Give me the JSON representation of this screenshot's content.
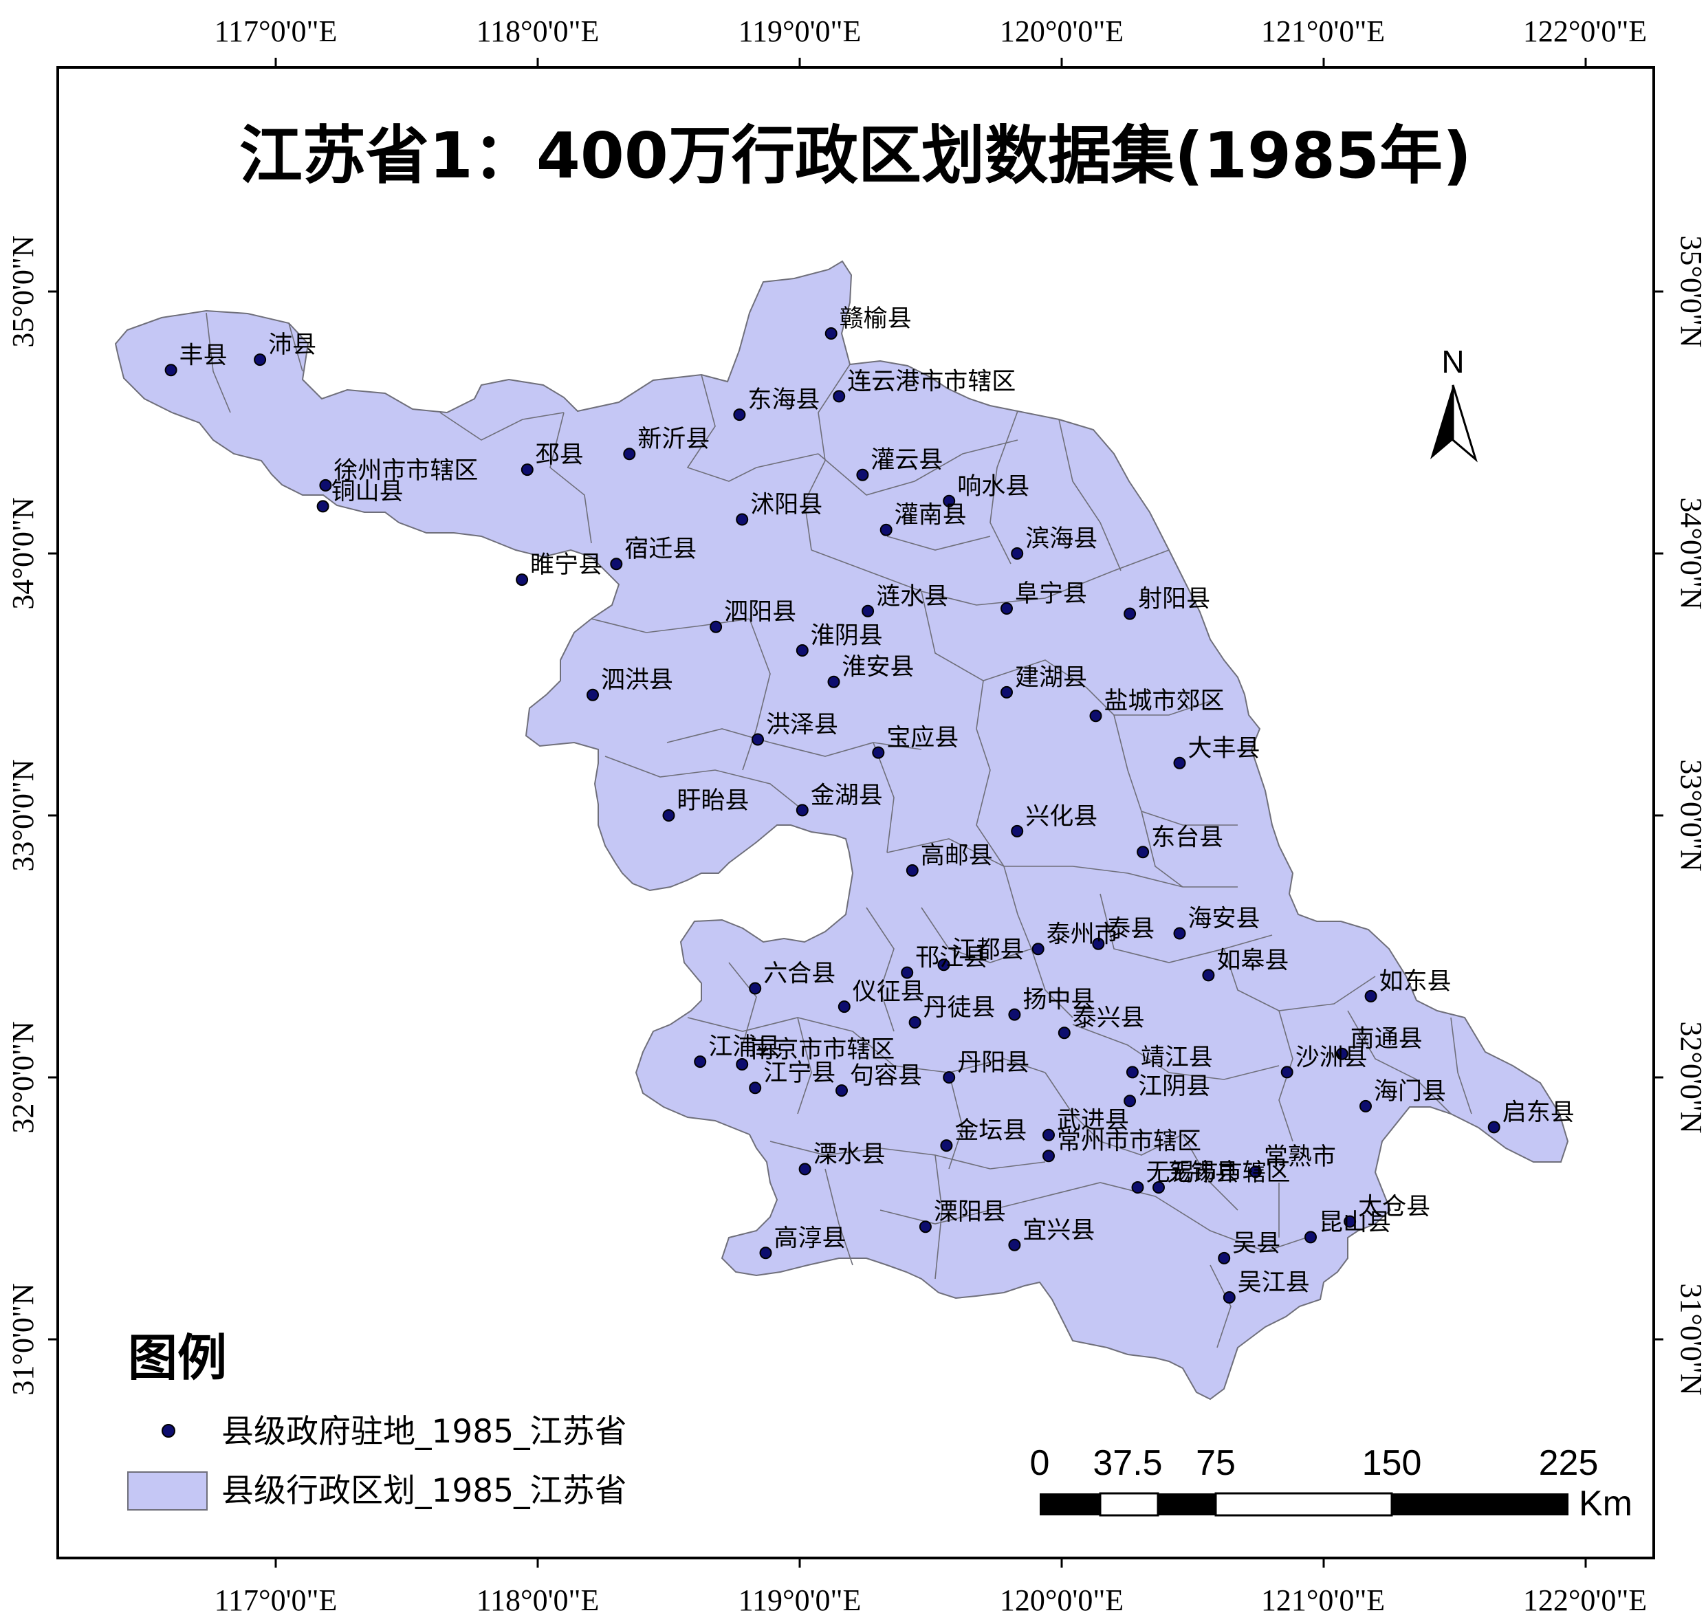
{
  "title": "江苏省1：400万行政区划数据集(1985年)",
  "colors": {
    "land_fill": "#c5c7f5",
    "boundary": "#6f6f7a",
    "point": "#0d0d6e"
  },
  "axes": {
    "lon_labels": [
      "117°0'0\"E",
      "118°0'0\"E",
      "119°0'0\"E",
      "120°0'0\"E",
      "121°0'0\"E",
      "122°0'0\"E"
    ],
    "lat_labels": [
      "35°0'0\"N",
      "34°0'0\"N",
      "33°0'0\"N",
      "32°0'0\"N",
      "31°0'0\"N"
    ]
  },
  "north_arrow": {
    "label": "N",
    "icon": "north-arrow-icon"
  },
  "legend": {
    "title": "图例",
    "point_label": "县级政府驻地_1985_江苏省",
    "polygon_label": "县级行政区划_1985_江苏省"
  },
  "scale_bar": {
    "ticks": [
      "0",
      "37.5",
      "75",
      "150",
      "225"
    ],
    "unit": "Km"
  },
  "places": [
    {
      "name": "赣榆县",
      "lon": 119.12,
      "lat": 34.84
    },
    {
      "name": "丰县",
      "lon": 116.6,
      "lat": 34.7
    },
    {
      "name": "沛县",
      "lon": 116.94,
      "lat": 34.74
    },
    {
      "name": "连云港市市辖区",
      "lon": 119.15,
      "lat": 34.6
    },
    {
      "name": "东海县",
      "lon": 118.77,
      "lat": 34.53
    },
    {
      "name": "新沂县",
      "lon": 118.35,
      "lat": 34.38
    },
    {
      "name": "邳县",
      "lon": 117.96,
      "lat": 34.32
    },
    {
      "name": "徐州市市辖区",
      "lon": 117.19,
      "lat": 34.26
    },
    {
      "name": "铜山县",
      "lon": 117.18,
      "lat": 34.18
    },
    {
      "name": "灌云县",
      "lon": 119.24,
      "lat": 34.3
    },
    {
      "name": "响水县",
      "lon": 119.57,
      "lat": 34.2
    },
    {
      "name": "沭阳县",
      "lon": 118.78,
      "lat": 34.13
    },
    {
      "name": "灌南县",
      "lon": 119.33,
      "lat": 34.09
    },
    {
      "name": "滨海县",
      "lon": 119.83,
      "lat": 34.0
    },
    {
      "name": "宿迁县",
      "lon": 118.3,
      "lat": 33.96
    },
    {
      "name": "睢宁县",
      "lon": 117.94,
      "lat": 33.9
    },
    {
      "name": "涟水县",
      "lon": 119.26,
      "lat": 33.78
    },
    {
      "name": "阜宁县",
      "lon": 119.79,
      "lat": 33.79
    },
    {
      "name": "射阳县",
      "lon": 120.26,
      "lat": 33.77
    },
    {
      "name": "泗阳县",
      "lon": 118.68,
      "lat": 33.72
    },
    {
      "name": "淮阴县",
      "lon": 119.01,
      "lat": 33.63
    },
    {
      "name": "淮安县",
      "lon": 119.13,
      "lat": 33.51
    },
    {
      "name": "泗洪县",
      "lon": 118.21,
      "lat": 33.46
    },
    {
      "name": "建湖县",
      "lon": 119.79,
      "lat": 33.47
    },
    {
      "name": "盐城市郊区",
      "lon": 120.13,
      "lat": 33.38
    },
    {
      "name": "洪泽县",
      "lon": 118.84,
      "lat": 33.29
    },
    {
      "name": "宝应县",
      "lon": 119.3,
      "lat": 33.24
    },
    {
      "name": "大丰县",
      "lon": 120.45,
      "lat": 33.2
    },
    {
      "name": "盱眙县",
      "lon": 118.5,
      "lat": 33.0
    },
    {
      "name": "金湖县",
      "lon": 119.01,
      "lat": 33.02
    },
    {
      "name": "兴化县",
      "lon": 119.83,
      "lat": 32.94
    },
    {
      "name": "东台县",
      "lon": 120.31,
      "lat": 32.86
    },
    {
      "name": "高邮县",
      "lon": 119.43,
      "lat": 32.79
    },
    {
      "name": "海安县",
      "lon": 120.45,
      "lat": 32.55
    },
    {
      "name": "泰县",
      "lon": 120.14,
      "lat": 32.51
    },
    {
      "name": "泰州市",
      "lon": 119.91,
      "lat": 32.49
    },
    {
      "name": "江都县",
      "lon": 119.55,
      "lat": 32.43
    },
    {
      "name": "邗江县",
      "lon": 119.41,
      "lat": 32.4
    },
    {
      "name": "如皋县",
      "lon": 120.56,
      "lat": 32.39
    },
    {
      "name": "如东县",
      "lon": 121.18,
      "lat": 32.31
    },
    {
      "name": "六合县",
      "lon": 118.83,
      "lat": 32.34
    },
    {
      "name": "仪征县",
      "lon": 119.17,
      "lat": 32.27
    },
    {
      "name": "扬中县",
      "lon": 119.82,
      "lat": 32.24
    },
    {
      "name": "丹徒县",
      "lon": 119.44,
      "lat": 32.21
    },
    {
      "name": "泰兴县",
      "lon": 120.01,
      "lat": 32.17
    },
    {
      "name": "南通县",
      "lon": 121.07,
      "lat": 32.09
    },
    {
      "name": "江浦县",
      "lon": 118.62,
      "lat": 32.06
    },
    {
      "name": "南京市市辖区",
      "lon": 118.78,
      "lat": 32.05
    },
    {
      "name": "靖江县",
      "lon": 120.27,
      "lat": 32.02
    },
    {
      "name": "丹阳县",
      "lon": 119.57,
      "lat": 32.0
    },
    {
      "name": "沙洲县",
      "lon": 120.86,
      "lat": 32.02
    },
    {
      "name": "江宁县",
      "lon": 118.83,
      "lat": 31.96
    },
    {
      "name": "句容县",
      "lon": 119.16,
      "lat": 31.95
    },
    {
      "name": "海门县",
      "lon": 121.16,
      "lat": 31.89
    },
    {
      "name": "江阴县",
      "lon": 120.26,
      "lat": 31.91
    },
    {
      "name": "启东县",
      "lon": 121.65,
      "lat": 31.81
    },
    {
      "name": "武进县",
      "lon": 119.95,
      "lat": 31.78
    },
    {
      "name": "金坛县",
      "lon": 119.56,
      "lat": 31.74
    },
    {
      "name": "常州市市辖区",
      "lon": 119.95,
      "lat": 31.7
    },
    {
      "name": "溧水县",
      "lon": 119.02,
      "lat": 31.65
    },
    {
      "name": "常熟市",
      "lon": 120.74,
      "lat": 31.64
    },
    {
      "name": "无锡县",
      "lon": 120.37,
      "lat": 31.58
    },
    {
      "name": "无锡市市辖区",
      "lon": 120.29,
      "lat": 31.58
    },
    {
      "name": "太仓县",
      "lon": 121.1,
      "lat": 31.45
    },
    {
      "name": "溧阳县",
      "lon": 119.48,
      "lat": 31.43
    },
    {
      "name": "宜兴县",
      "lon": 119.82,
      "lat": 31.36
    },
    {
      "name": "昆山县",
      "lon": 120.95,
      "lat": 31.39
    },
    {
      "name": "高淳县",
      "lon": 118.87,
      "lat": 31.33
    },
    {
      "name": "吴县",
      "lon": 120.62,
      "lat": 31.31
    },
    {
      "name": "吴江县",
      "lon": 120.64,
      "lat": 31.16
    }
  ]
}
